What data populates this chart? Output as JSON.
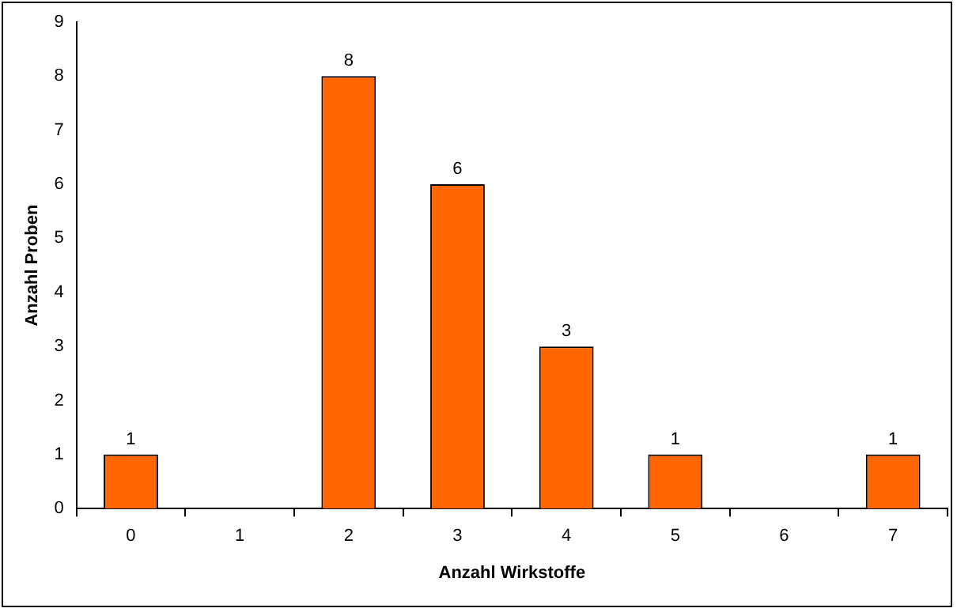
{
  "chart_data": {
    "type": "bar",
    "xlabel": "Anzahl Wirkstoffe",
    "ylabel": "Anzahl Proben",
    "categories": [
      "0",
      "1",
      "2",
      "3",
      "4",
      "5",
      "6",
      "7"
    ],
    "values": [
      1,
      0,
      8,
      6,
      3,
      1,
      0,
      1
    ],
    "value_labels": [
      "1",
      null,
      "8",
      "6",
      "3",
      "1",
      null,
      "1"
    ],
    "color": "#ff6600",
    "ylim": [
      0,
      9
    ],
    "yticks": [
      0,
      1,
      2,
      3,
      4,
      5,
      6,
      7,
      8,
      9
    ],
    "grid": false,
    "legend": false
  }
}
